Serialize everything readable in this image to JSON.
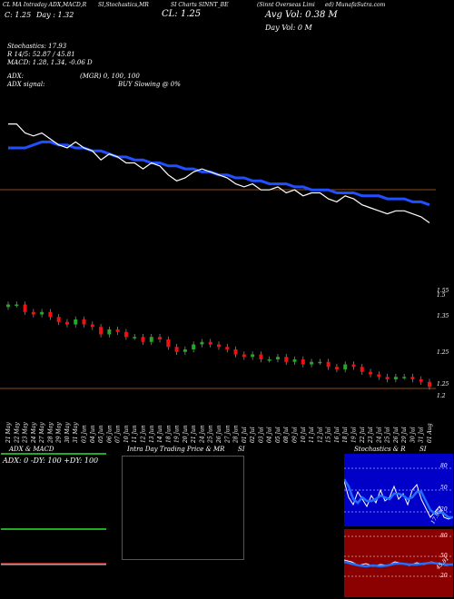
{
  "header": {
    "line1_left": "CL MA Intraday ADX,MACD,R",
    "line1_mid": "SI,Stochastics,MR",
    "line1_mid2": "SI Charts SINNT_BE",
    "line1_right": "(Sinnt Overseas Limi",
    "line1_far": "ed) MunafaSutra.com",
    "line2_a": "C: 1.25",
    "line2_b": "Day : 1.32",
    "cl_label": "CL: 1.25",
    "avg_vol": "Avg Vol: 0.38  M",
    "day_vol": "Day Vol: 0   M"
  },
  "indicators": {
    "stochastics": "Stochastics: 17.93",
    "r_line": "R 14/5: 52.87 / 45.81",
    "macd": "MACD: 1.28, 1.34, -0.06  D",
    "adx": "ADX:",
    "mgr": "(MGR) 0, 100, 100",
    "adx_signal": "ADX signal:",
    "buy_signal": "BUY Slowing @ 0%"
  },
  "price_axis": [
    "1.55",
    "1.5",
    "1.35",
    "1.25",
    "1.25",
    "1.2"
  ],
  "dates": [
    "21 May",
    "22 May",
    "23 May",
    "24 May",
    "27 May",
    "28 May",
    "29 May",
    "30 May",
    "31 May",
    "03 Jun",
    "04 Jun",
    "05 Jun",
    "06 Jun",
    "07 Jun",
    "10 Jun",
    "11 Jun",
    "12 Jun",
    "13 Jun",
    "14 Jun",
    "18 Jun",
    "19 Jun",
    "20 Jun",
    "21 Jun",
    "24 Jun",
    "25 Jun",
    "26 Jun",
    "27 Jun",
    "28 Jun",
    "01 Jul",
    "02 Jul",
    "03 Jul",
    "04 Jul",
    "05 Jul",
    "08 Jul",
    "09 Jul",
    "10 Jul",
    "11 Jul",
    "12 Jul",
    "15 Jul",
    "16 Jul",
    "18 Jul",
    "19 Jul",
    "22 Jul",
    "23 Jul",
    "24 Jul",
    "25 Jul",
    "26 Jul",
    "29 Jul",
    "30 Jul",
    "31 Jul",
    "01 Aug"
  ],
  "panels": {
    "adx_title": "ADX  & MACD",
    "adx_values": "ADX: 0  -DY: 100  +DY: 100",
    "intra_title": "Intra  Day Trading Price  & MR",
    "intra_si": "SI",
    "stoch_title": "Stochastics & R",
    "stoch_si": "SI",
    "stoch_axis": [
      "80",
      "50",
      "20"
    ],
    "si_axis": [
      "80",
      "50",
      "20"
    ],
    "stoch_val": "17.93",
    "si_val": "45.81"
  },
  "colors": {
    "bull": "#22aa22",
    "bear": "#ee1111",
    "ma": "#1f4fff",
    "price": "#ffffff",
    "stoch_bg": "#0000c8",
    "si_bg": "#8b0000"
  },
  "chart_data": {
    "type": "line",
    "x": [
      "21 May",
      "22 May",
      "23 May",
      "24 May",
      "27 May",
      "28 May",
      "29 May",
      "30 May",
      "31 May",
      "03 Jun",
      "04 Jun",
      "05 Jun",
      "06 Jun",
      "07 Jun",
      "10 Jun",
      "11 Jun",
      "12 Jun",
      "13 Jun",
      "14 Jun",
      "18 Jun",
      "19 Jun",
      "20 Jun",
      "21 Jun",
      "24 Jun",
      "25 Jun",
      "26 Jun",
      "27 Jun",
      "28 Jun",
      "01 Jul",
      "02 Jul",
      "03 Jul",
      "04 Jul",
      "05 Jul",
      "08 Jul",
      "09 Jul",
      "10 Jul",
      "11 Jul",
      "12 Jul",
      "15 Jul",
      "16 Jul",
      "18 Jul",
      "19 Jul",
      "22 Jul",
      "23 Jul",
      "24 Jul",
      "25 Jul",
      "26 Jul",
      "29 Jul",
      "30 Jul",
      "31 Jul",
      "01 Aug"
    ],
    "series": [
      {
        "values": [
          1.58,
          1.58,
          1.55,
          1.54,
          1.55,
          1.53,
          1.51,
          1.5,
          1.52,
          1.5,
          1.49,
          1.46,
          1.48,
          1.47,
          1.45,
          1.45,
          1.43,
          1.45,
          1.44,
          1.41,
          1.39,
          1.4,
          1.42,
          1.43,
          1.42,
          1.41,
          1.4,
          1.38,
          1.37,
          1.38,
          1.36,
          1.36,
          1.37,
          1.35,
          1.36,
          1.34,
          1.35,
          1.35,
          1.33,
          1.32,
          1.34,
          1.33,
          1.31,
          1.3,
          1.29,
          1.28,
          1.29,
          1.29,
          1.28,
          1.27,
          1.25
        ]
      },
      {
        "values": [
          1.5,
          1.5,
          1.5,
          1.51,
          1.52,
          1.52,
          1.51,
          1.51,
          1.5,
          1.5,
          1.49,
          1.49,
          1.48,
          1.47,
          1.47,
          1.46,
          1.46,
          1.45,
          1.45,
          1.44,
          1.44,
          1.43,
          1.43,
          1.42,
          1.42,
          1.41,
          1.41,
          1.4,
          1.4,
          1.39,
          1.39,
          1.38,
          1.38,
          1.38,
          1.37,
          1.37,
          1.36,
          1.36,
          1.36,
          1.35,
          1.35,
          1.35,
          1.34,
          1.34,
          1.34,
          1.33,
          1.33,
          1.33,
          1.32,
          1.32,
          1.31
        ]
      }
    ]
  }
}
